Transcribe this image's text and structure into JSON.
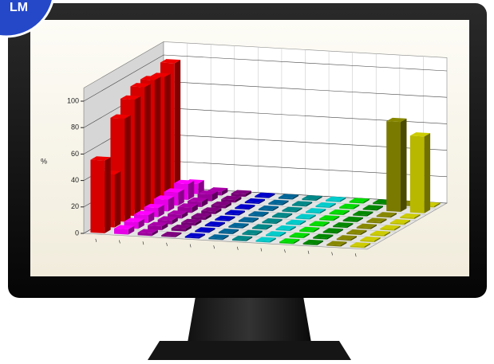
{
  "badge": "LM",
  "chart_data": {
    "type": "bar3d",
    "y_label": "%",
    "categories": [
      null,
      null,
      null,
      null,
      null,
      null,
      null,
      null,
      null,
      null,
      null,
      null
    ],
    "colors": [
      "#ee0000",
      "#ff00ff",
      "#aa00aa",
      "#800080",
      "#0000cc",
      "#006699",
      "#008888",
      "#00cccc",
      "#00dd00",
      "#008800",
      "#888800",
      "#cccc00"
    ],
    "series": [
      {
        "values": [
          55,
          4,
          2,
          1,
          1,
          1,
          1,
          1,
          1,
          1,
          1,
          1
        ]
      },
      {
        "values": [
          40,
          5,
          3,
          2,
          1,
          1,
          1,
          1,
          1,
          1,
          1,
          1
        ]
      },
      {
        "values": [
          78,
          6,
          3,
          2,
          1,
          1,
          1,
          1,
          1,
          1,
          1,
          1
        ]
      },
      {
        "values": [
          88,
          7,
          3,
          2,
          1,
          1,
          1,
          1,
          1,
          1,
          1,
          1
        ]
      },
      {
        "values": [
          93,
          9,
          4,
          2,
          1,
          1,
          1,
          1,
          1,
          1,
          1,
          1
        ]
      },
      {
        "values": [
          94,
          10,
          4,
          2,
          1,
          1,
          1,
          1,
          1,
          1,
          1,
          1
        ]
      },
      {
        "values": [
          92,
          12,
          5,
          2,
          1,
          1,
          1,
          1,
          1,
          1,
          68,
          58
        ]
      },
      {
        "values": [
          98,
          8,
          3,
          2,
          1,
          1,
          1,
          1,
          1,
          1,
          1,
          1
        ]
      }
    ],
    "ylim": [
      0,
      110
    ],
    "yticks": [
      0,
      20,
      40,
      60,
      80,
      100
    ],
    "grid": true
  }
}
